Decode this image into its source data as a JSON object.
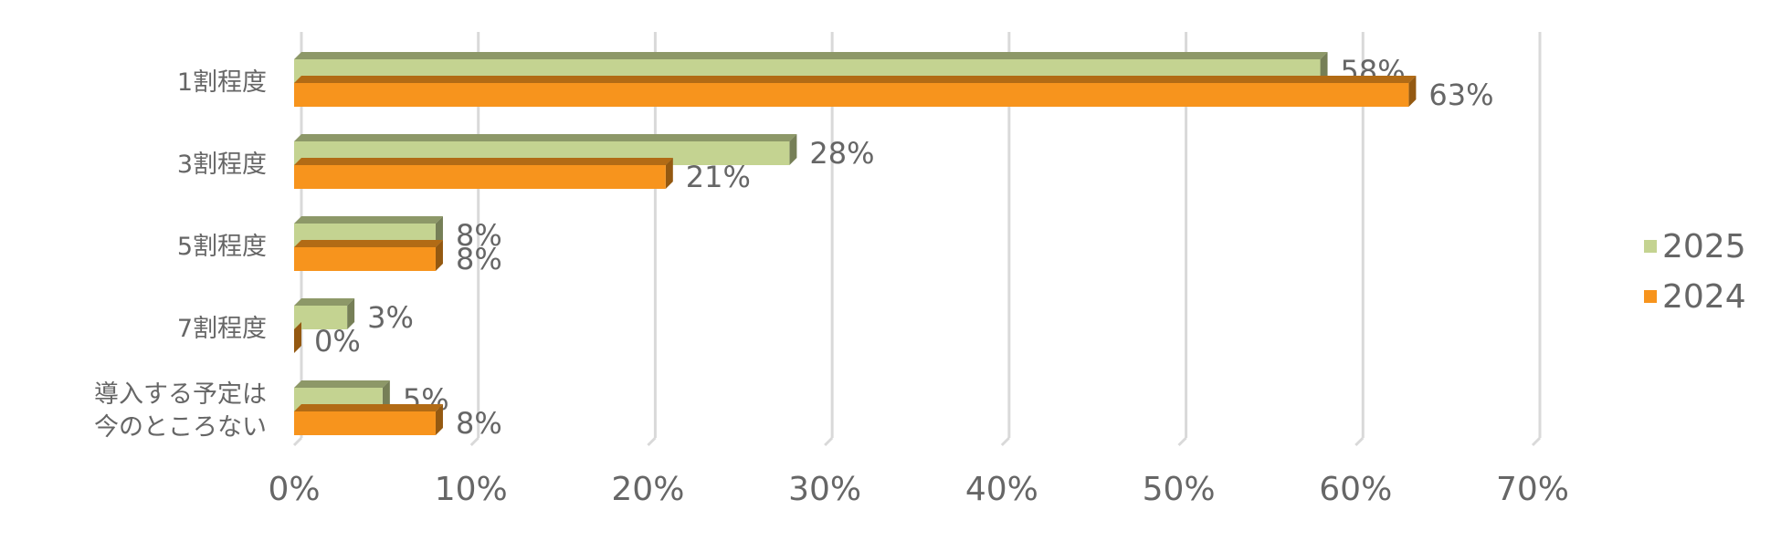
{
  "chart_data": {
    "type": "bar",
    "orientation": "horizontal",
    "categories": [
      "1割程度",
      "3割程度",
      "5割程度",
      "7割程度",
      "導入する予定は今のところない"
    ],
    "series": [
      {
        "name": "2025",
        "color": "#c4d391",
        "values": [
          58,
          28,
          8,
          3,
          5
        ],
        "value_labels": [
          "58%",
          "28%",
          "8%",
          "3%",
          "5%"
        ]
      },
      {
        "name": "2024",
        "color": "#f7941d",
        "values": [
          63,
          21,
          8,
          0,
          8
        ],
        "value_labels": [
          "63%",
          "21%",
          "8%",
          "0%",
          "8%"
        ]
      }
    ],
    "xlim": [
      0,
      70
    ],
    "xticks": [
      {
        "value": 0,
        "label": "0%"
      },
      {
        "value": 10,
        "label": "10%"
      },
      {
        "value": 20,
        "label": "20%"
      },
      {
        "value": 30,
        "label": "30%"
      },
      {
        "value": 40,
        "label": "40%"
      },
      {
        "value": 50,
        "label": "50%"
      },
      {
        "value": 60,
        "label": "60%"
      },
      {
        "value": 70,
        "label": "70%"
      }
    ],
    "grid": true,
    "legend": "right"
  }
}
